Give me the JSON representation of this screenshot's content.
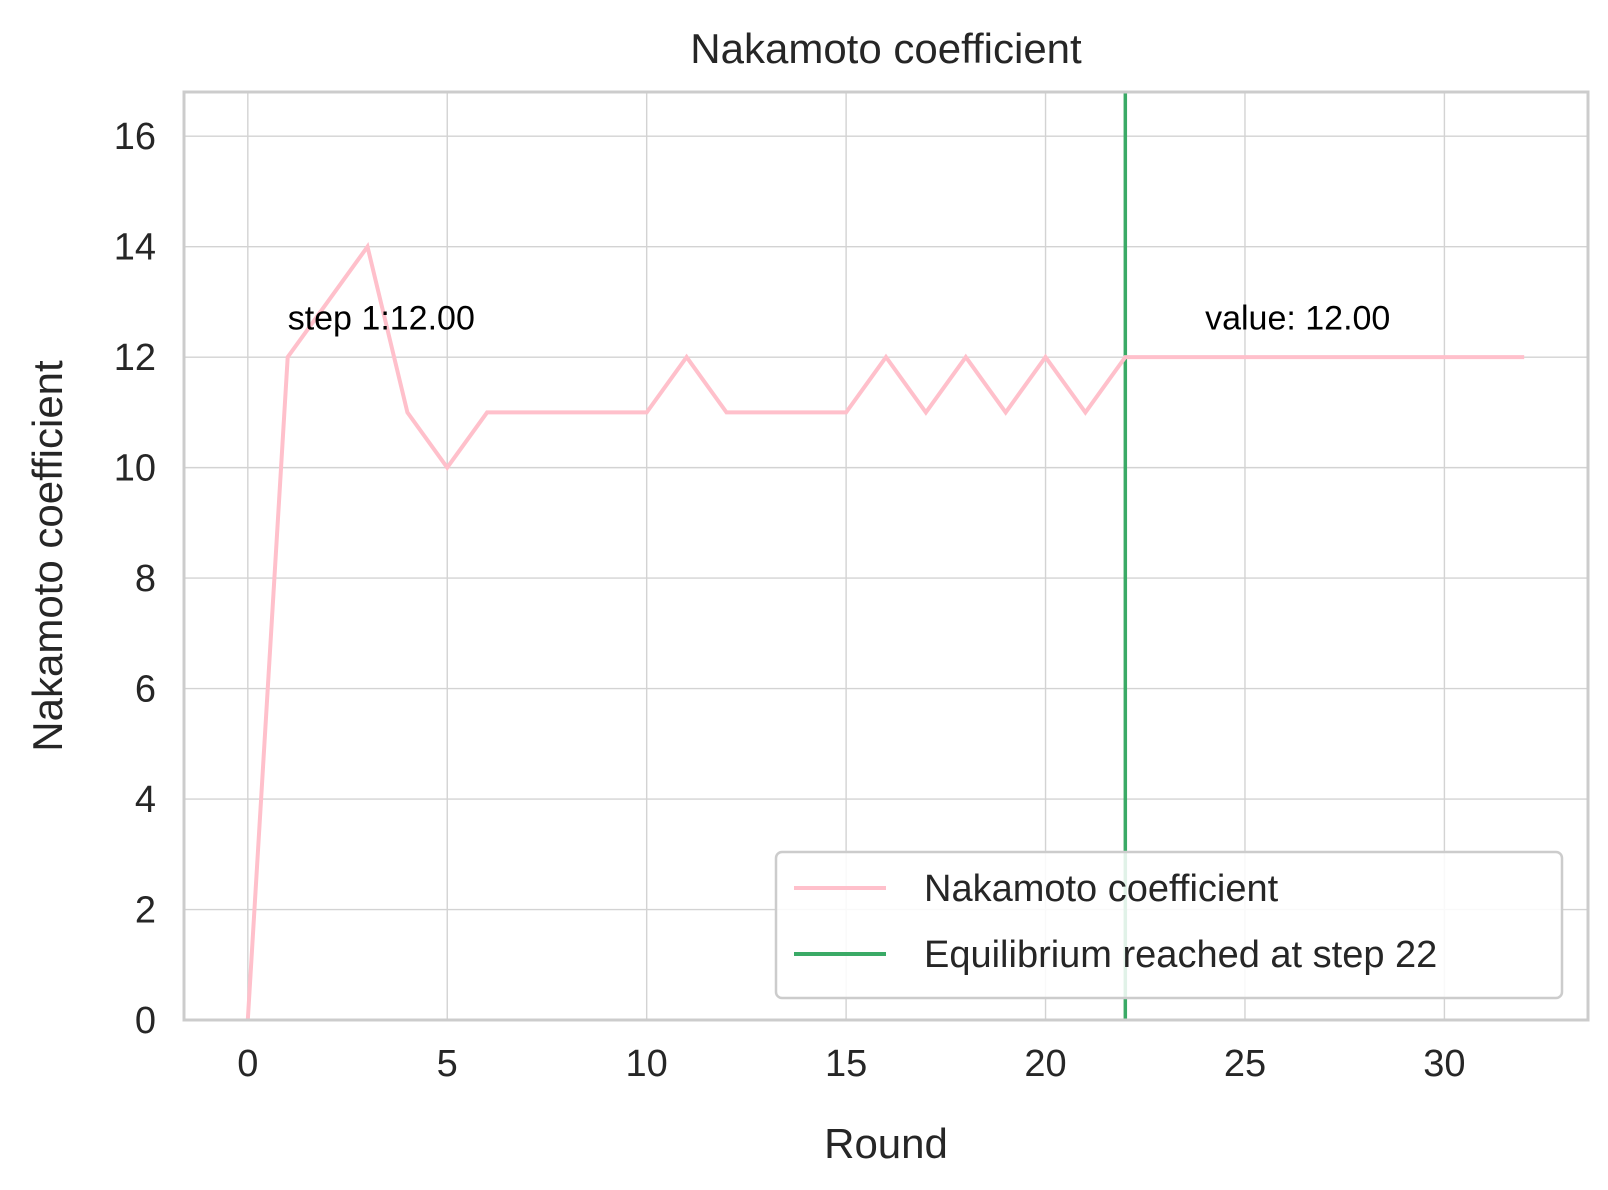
{
  "chart_data": {
    "type": "line",
    "title": "Nakamoto coefficient",
    "xlabel": "Round",
    "ylabel": "Nakamoto coefficient",
    "xlim": [
      -1.6,
      33.6
    ],
    "ylim": [
      0,
      16.8
    ],
    "xticks": [
      0,
      5,
      10,
      15,
      20,
      25,
      30
    ],
    "yticks": [
      0,
      2,
      4,
      6,
      8,
      10,
      12,
      14,
      16
    ],
    "grid": true,
    "legend_position": "bottom-right",
    "series": [
      {
        "name": "Nakamoto coefficient",
        "color": "#ffc0cb",
        "x": [
          0,
          1,
          2,
          3,
          4,
          5,
          6,
          7,
          8,
          9,
          10,
          11,
          12,
          13,
          14,
          15,
          16,
          17,
          18,
          19,
          20,
          21,
          22,
          23,
          24,
          25,
          26,
          27,
          28,
          29,
          30,
          31,
          32
        ],
        "values": [
          0,
          12,
          13,
          14,
          11,
          10,
          11,
          11,
          11,
          11,
          11,
          12,
          11,
          11,
          11,
          11,
          12,
          11,
          12,
          11,
          12,
          11,
          12,
          12,
          12,
          12,
          12,
          12,
          12,
          12,
          12,
          12,
          12
        ]
      }
    ],
    "vertical_lines": [
      {
        "name": "Equilibrium reached at step 22",
        "x": 22,
        "color": "#3aaa66"
      }
    ],
    "annotations": [
      {
        "text": "step 1:12.00",
        "x": 1,
        "y": 12.5
      },
      {
        "text": "value: 12.00",
        "x": 24,
        "y": 12.5
      }
    ]
  }
}
